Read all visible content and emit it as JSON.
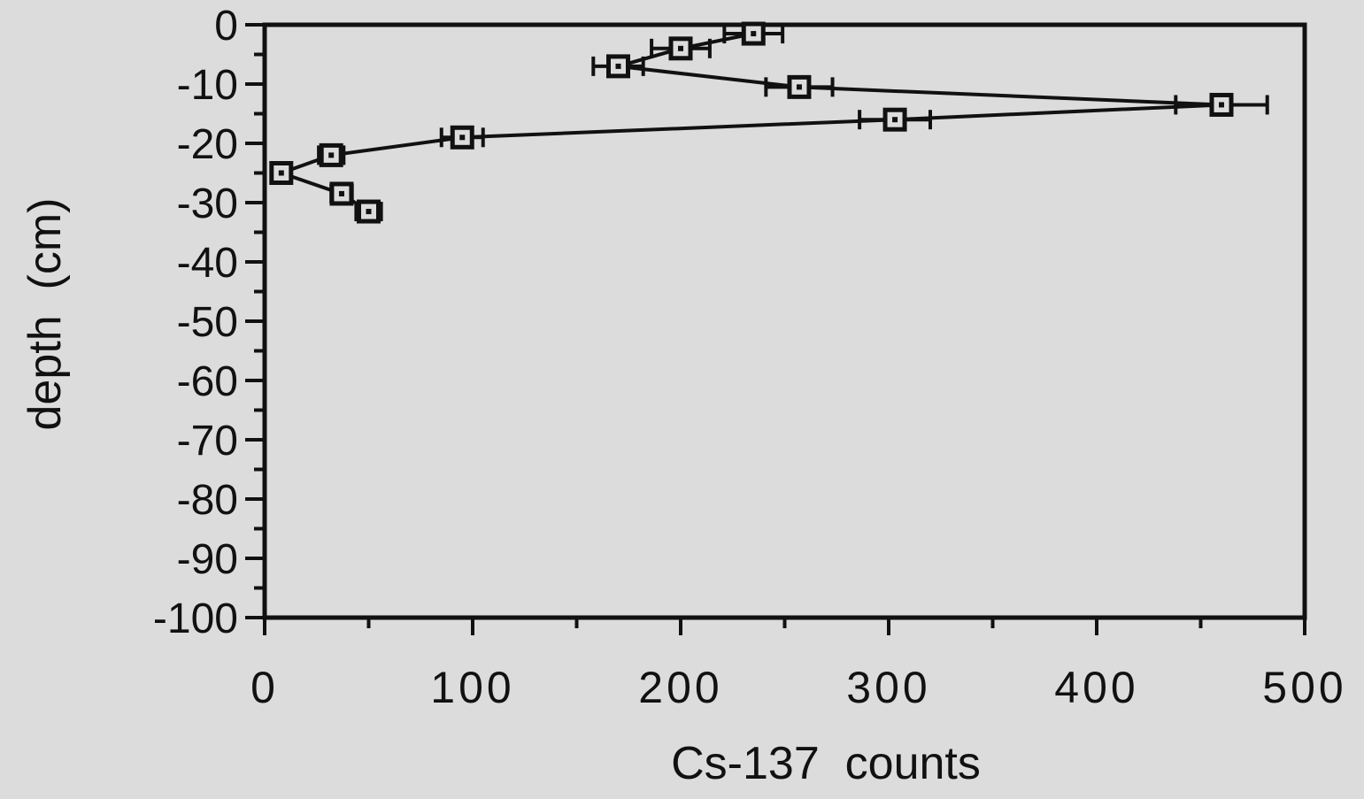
{
  "chart_data": {
    "type": "scatter",
    "xlabel": "Cs-137  counts",
    "ylabel": "depth  (cm)",
    "xlim": [
      0,
      500
    ],
    "ylim": [
      -100,
      0
    ],
    "x_major_ticks": [
      0,
      100,
      200,
      300,
      400,
      500
    ],
    "x_minor_ticks": [
      50,
      150,
      250,
      350,
      450
    ],
    "y_major_ticks": [
      0,
      -10,
      -20,
      -30,
      -40,
      -50,
      -60,
      -70,
      -80,
      -90,
      -100
    ],
    "y_minor_ticks": [
      -5,
      -15,
      -25,
      -35,
      -45,
      -55,
      -65,
      -75,
      -85,
      -95
    ],
    "x_tick_labels": [
      "0",
      "100",
      "200",
      "300",
      "400",
      "500"
    ],
    "y_tick_labels": [
      "0",
      "-10",
      "-20",
      "-30",
      "-40",
      "-50",
      "-60",
      "-70",
      "-80",
      "-90",
      "-100"
    ],
    "grid": false,
    "marker": "square",
    "line_color": "#111111",
    "background_color": "#dcdcdc",
    "series": [
      {
        "points": [
          {
            "x": 235,
            "y": -1.5,
            "xerr": 14
          },
          {
            "x": 200,
            "y": -4,
            "xerr": 14
          },
          {
            "x": 170,
            "y": -7,
            "xerr": 12
          },
          {
            "x": 257,
            "y": -10.5,
            "xerr": 16
          },
          {
            "x": 460,
            "y": -13.5,
            "xerr": 22
          },
          {
            "x": 303,
            "y": -16,
            "xerr": 17
          },
          {
            "x": 95,
            "y": -19,
            "xerr": 10
          },
          {
            "x": 32,
            "y": -22,
            "xerr": 6
          },
          {
            "x": 8,
            "y": -25,
            "xerr": 4
          },
          {
            "x": 37,
            "y": -28.5,
            "xerr": 5
          },
          {
            "x": 50,
            "y": -31.5,
            "xerr": 6
          }
        ]
      }
    ]
  }
}
